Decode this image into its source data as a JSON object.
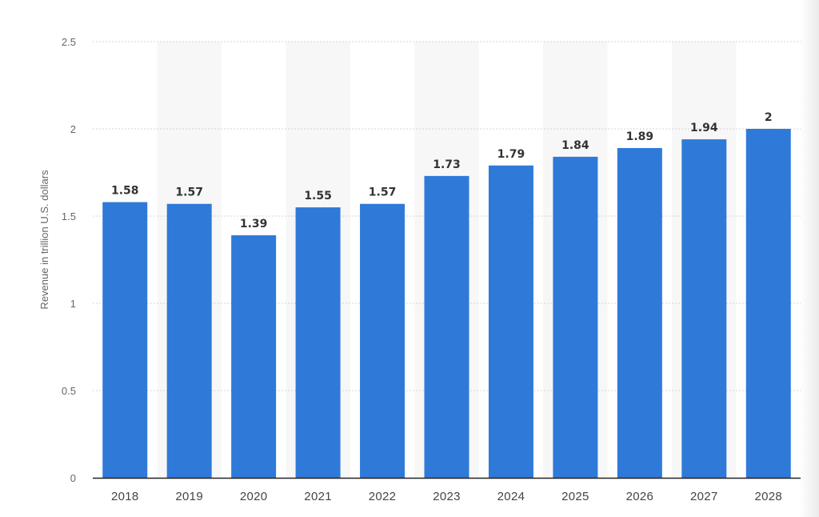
{
  "chart_data": {
    "type": "bar",
    "title": "",
    "xlabel": "",
    "ylabel": "Revenue in trillion U.S. dollars",
    "categories": [
      "2018",
      "2019",
      "2020",
      "2021",
      "2022",
      "2023",
      "2024",
      "2025",
      "2026",
      "2027",
      "2028"
    ],
    "values": [
      1.58,
      1.57,
      1.39,
      1.55,
      1.57,
      1.73,
      1.79,
      1.84,
      1.89,
      1.94,
      2
    ],
    "data_labels": [
      "1.58",
      "1.57",
      "1.39",
      "1.55",
      "1.57",
      "1.73",
      "1.79",
      "1.84",
      "1.89",
      "1.94",
      "2"
    ],
    "ylim": [
      0,
      2.5
    ],
    "yticks": [
      0,
      0.5,
      1,
      1.5,
      2,
      2.5
    ],
    "ytick_labels": [
      "0",
      "0.5",
      "1",
      "1.5",
      "2",
      "2.5"
    ],
    "grid": true,
    "grid_style": "dotted",
    "alternating_column_shading": true,
    "bar_color": "#2f7ad9",
    "grid_color": "#c8c8c8",
    "shade_color": "#f7f7f7",
    "axis_color": "#222222"
  }
}
